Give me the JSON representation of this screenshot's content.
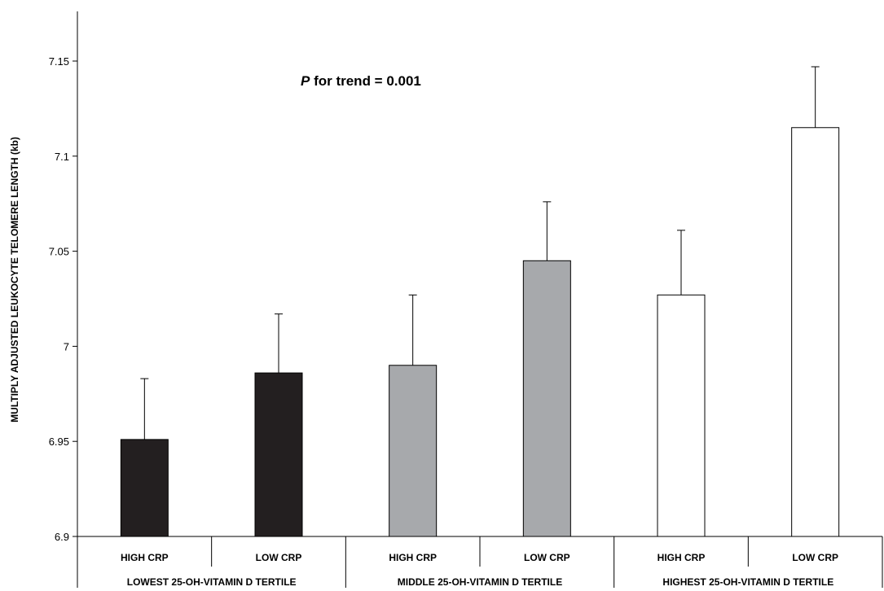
{
  "chart_data": {
    "type": "bar",
    "title": "",
    "ylabel": "MULTIPLY ADJUSTED LEUKOCYTE TELOMERE LENGTH (kb)",
    "xlabel": "",
    "ylim": [
      6.9,
      7.15
    ],
    "yticks": [
      6.9,
      6.95,
      7,
      7.05,
      7.1,
      7.15
    ],
    "ytick_labels": [
      "6.9",
      "6.95",
      "7",
      "7.05",
      "7.1",
      "7.15"
    ],
    "grid": false,
    "categories": [
      "HIGH CRP",
      "LOW CRP",
      "HIGH CRP",
      "LOW CRP",
      "HIGH CRP",
      "LOW CRP"
    ],
    "groups": [
      {
        "label": "LOWEST 25-OH-VITAMIN D TERTILE",
        "color": "#231f20"
      },
      {
        "label": "MIDDLE 25-OH-VITAMIN D TERTILE",
        "color": "#a7a9ac"
      },
      {
        "label": "HIGHEST 25-OH-VITAMIN D TERTILE",
        "color": "#ffffff"
      }
    ],
    "values": [
      6.951,
      6.986,
      6.99,
      7.045,
      7.027,
      7.115
    ],
    "error_upper": [
      6.983,
      7.017,
      7.027,
      7.076,
      7.061,
      7.147
    ],
    "annotation": {
      "italic_part": "P",
      "text_part": " for trend = 0.001"
    }
  }
}
